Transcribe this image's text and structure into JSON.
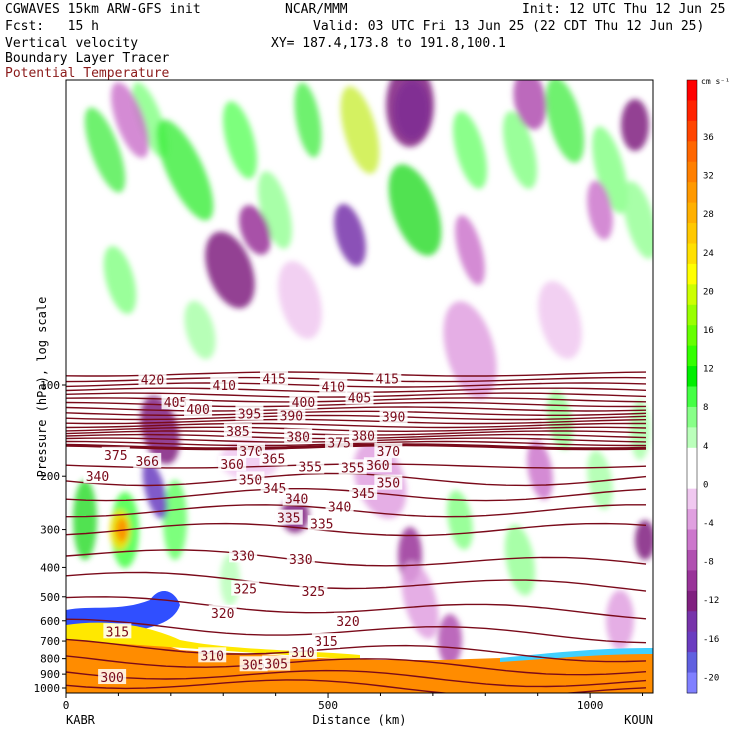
{
  "header": {
    "line1_left": "CGWAVES 15km ARW-GFS init",
    "line1_mid": "NCAR/MMM",
    "line1_right": "Init: 12 UTC Thu 12 Jun 25",
    "line2_left": "Fcst:   15 h",
    "line2_right": "Valid: 03 UTC Fri 13 Jun 25 (22 CDT Thu 12 Jun 25)",
    "line3_left": "Vertical velocity",
    "line3_right": "XY= 187.4,173.8 to 191.8,100.1",
    "line4_left": "Boundary Layer Tracer",
    "line5_left": "Potential Temperature"
  },
  "colors": {
    "theta_lines": "#7a0a1a",
    "terrain": "#ff8c00",
    "positive_green": "#22dd22",
    "negative_purple": "#8a2be2"
  },
  "chart_data": {
    "type": "heatmap",
    "xlabel": "Distance (km)",
    "ylabel": "Pressure (hPa), log scale",
    "x_ticks": [
      "0",
      "500",
      "1000"
    ],
    "x_range": [
      0,
      1120
    ],
    "x_endpoint_labels": [
      "KABR",
      "KOUN"
    ],
    "y_ticks": [
      "100",
      "200",
      "300",
      "400",
      "500",
      "600",
      "700",
      "800",
      "900",
      "1000"
    ],
    "y_ticks_values": [
      100,
      200,
      300,
      400,
      500,
      600,
      700,
      800,
      900,
      1000
    ],
    "y_log_scale": true,
    "colorbar": {
      "unit": "cm s⁻¹",
      "tick_labels": [
        "36",
        "32",
        "28",
        "24",
        "20",
        "16",
        "12",
        "8",
        "4",
        "0",
        "-4",
        "-8",
        "-12",
        "-16",
        "-20"
      ],
      "colors": [
        "#ff0000",
        "#ff2200",
        "#ff4400",
        "#ff6600",
        "#ff7f00",
        "#ff9900",
        "#ffb000",
        "#ffc800",
        "#ffe000",
        "#ffff00",
        "#ccff00",
        "#99ff00",
        "#66ff00",
        "#33ff00",
        "#00ee00",
        "#44ff44",
        "#88ff88",
        "#bbffbb",
        "#ffffff",
        "#ffffff",
        "#f0c8f0",
        "#e0a0e0",
        "#cc77cc",
        "#b050b0",
        "#993399",
        "#802080",
        "#7733aa",
        "#6a3cc0",
        "#6060e0",
        "#8080ff"
      ]
    },
    "theta_labels": [
      {
        "text": "420",
        "x": 165,
        "p": 96
      },
      {
        "text": "405",
        "x": 209,
        "p": 114
      },
      {
        "text": "400",
        "x": 252,
        "p": 120
      },
      {
        "text": "410",
        "x": 302,
        "p": 100
      },
      {
        "text": "385",
        "x": 328,
        "p": 142
      },
      {
        "text": "395",
        "x": 350,
        "p": 124
      },
      {
        "text": "370",
        "x": 353,
        "p": 165
      },
      {
        "text": "366",
        "x": 155,
        "p": 178
      },
      {
        "text": "375",
        "x": 95,
        "p": 170
      },
      {
        "text": "360",
        "x": 317,
        "p": 182
      },
      {
        "text": "365",
        "x": 396,
        "p": 175
      },
      {
        "text": "415",
        "x": 397,
        "p": 95
      },
      {
        "text": "390",
        "x": 430,
        "p": 126
      },
      {
        "text": "380",
        "x": 443,
        "p": 148
      },
      {
        "text": "400",
        "x": 453,
        "p": 114
      },
      {
        "text": "410",
        "x": 510,
        "p": 101
      },
      {
        "text": "405",
        "x": 560,
        "p": 110
      },
      {
        "text": "415",
        "x": 613,
        "p": 95
      },
      {
        "text": "375",
        "x": 521,
        "p": 155
      },
      {
        "text": "380",
        "x": 567,
        "p": 147
      },
      {
        "text": "390",
        "x": 625,
        "p": 127
      },
      {
        "text": "370",
        "x": 615,
        "p": 165
      },
      {
        "text": "355",
        "x": 466,
        "p": 186
      },
      {
        "text": "355",
        "x": 547,
        "p": 187
      },
      {
        "text": "360",
        "x": 595,
        "p": 184
      },
      {
        "text": "350",
        "x": 352,
        "p": 205
      },
      {
        "text": "345",
        "x": 398,
        "p": 219
      },
      {
        "text": "350",
        "x": 615,
        "p": 210
      },
      {
        "text": "345",
        "x": 567,
        "p": 227
      },
      {
        "text": "340",
        "x": 60,
        "p": 200
      },
      {
        "text": "340",
        "x": 440,
        "p": 237
      },
      {
        "text": "340",
        "x": 522,
        "p": 252
      },
      {
        "text": "335",
        "x": 425,
        "p": 274
      },
      {
        "text": "335",
        "x": 488,
        "p": 286
      },
      {
        "text": "330",
        "x": 338,
        "p": 365
      },
      {
        "text": "330",
        "x": 448,
        "p": 375
      },
      {
        "text": "325",
        "x": 342,
        "p": 470
      },
      {
        "text": "325",
        "x": 472,
        "p": 478
      },
      {
        "text": "320",
        "x": 299,
        "p": 565
      },
      {
        "text": "320",
        "x": 538,
        "p": 600
      },
      {
        "text": "315",
        "x": 98,
        "p": 650
      },
      {
        "text": "315",
        "x": 496,
        "p": 700
      },
      {
        "text": "310",
        "x": 279,
        "p": 780
      },
      {
        "text": "310",
        "x": 452,
        "p": 760
      },
      {
        "text": "305",
        "x": 358,
        "p": 835
      },
      {
        "text": "305",
        "x": 401,
        "p": 830
      },
      {
        "text": "300",
        "x": 88,
        "p": 920
      }
    ]
  }
}
